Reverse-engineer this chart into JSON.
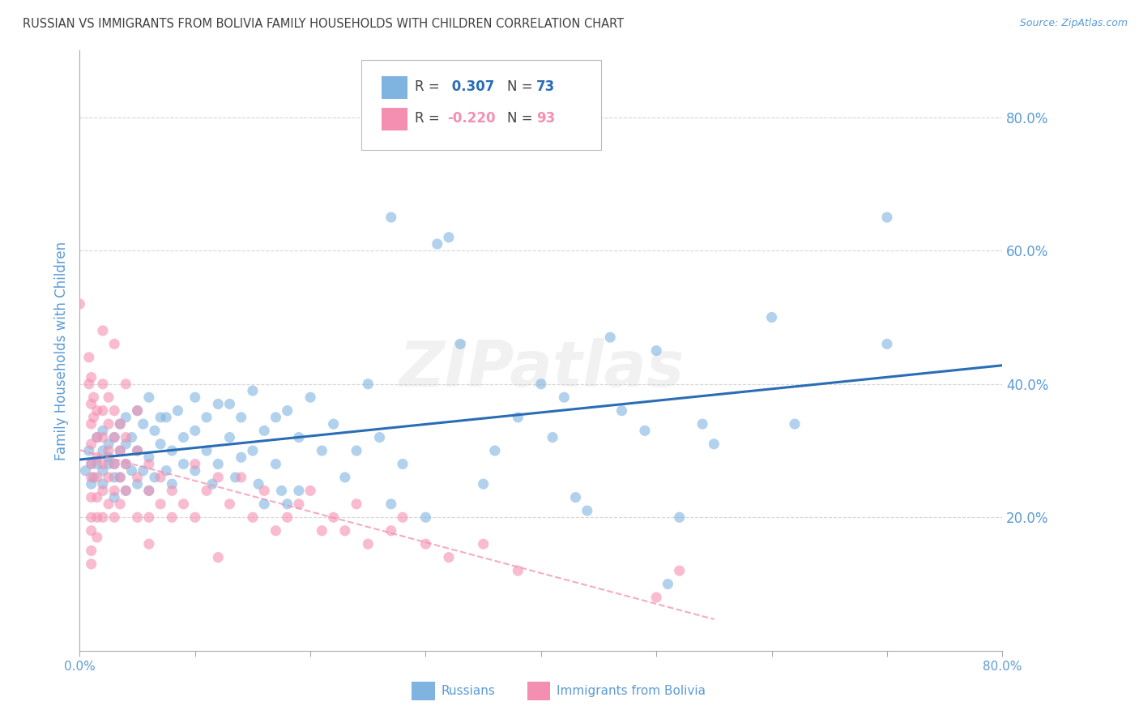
{
  "title": "RUSSIAN VS IMMIGRANTS FROM BOLIVIA FAMILY HOUSEHOLDS WITH CHILDREN CORRELATION CHART",
  "source": "Source: ZipAtlas.com",
  "ylabel": "Family Households with Children",
  "watermark": "ZIPatlas",
  "blue_color": "#7fb3e0",
  "pink_color": "#f48fb1",
  "blue_line_color": "#2a6db5",
  "pink_line_color": "#f48fb1",
  "axis_label_color": "#5b9bd5",
  "title_color": "#404040",
  "grid_color": "#cccccc",
  "background_color": "#ffffff",
  "xlim": [
    0.0,
    0.8
  ],
  "ylim": [
    0.0,
    0.9
  ],
  "yticks": [
    0.2,
    0.4,
    0.6,
    0.8
  ],
  "xticks": [
    0.0,
    0.1,
    0.2,
    0.3,
    0.4,
    0.5,
    0.6,
    0.7,
    0.8
  ],
  "russians": [
    [
      0.005,
      0.27
    ],
    [
      0.008,
      0.3
    ],
    [
      0.01,
      0.28
    ],
    [
      0.01,
      0.25
    ],
    [
      0.012,
      0.26
    ],
    [
      0.015,
      0.28
    ],
    [
      0.015,
      0.32
    ],
    [
      0.02,
      0.27
    ],
    [
      0.02,
      0.3
    ],
    [
      0.02,
      0.25
    ],
    [
      0.02,
      0.33
    ],
    [
      0.025,
      0.29
    ],
    [
      0.025,
      0.28
    ],
    [
      0.025,
      0.31
    ],
    [
      0.03,
      0.32
    ],
    [
      0.03,
      0.26
    ],
    [
      0.03,
      0.23
    ],
    [
      0.03,
      0.28
    ],
    [
      0.035,
      0.3
    ],
    [
      0.035,
      0.26
    ],
    [
      0.035,
      0.34
    ],
    [
      0.04,
      0.35
    ],
    [
      0.04,
      0.28
    ],
    [
      0.04,
      0.24
    ],
    [
      0.04,
      0.31
    ],
    [
      0.045,
      0.32
    ],
    [
      0.045,
      0.27
    ],
    [
      0.05,
      0.36
    ],
    [
      0.05,
      0.3
    ],
    [
      0.05,
      0.25
    ],
    [
      0.055,
      0.34
    ],
    [
      0.055,
      0.27
    ],
    [
      0.06,
      0.38
    ],
    [
      0.06,
      0.29
    ],
    [
      0.06,
      0.24
    ],
    [
      0.065,
      0.33
    ],
    [
      0.065,
      0.26
    ],
    [
      0.07,
      0.35
    ],
    [
      0.07,
      0.31
    ],
    [
      0.075,
      0.35
    ],
    [
      0.075,
      0.27
    ],
    [
      0.08,
      0.3
    ],
    [
      0.08,
      0.25
    ],
    [
      0.085,
      0.36
    ],
    [
      0.09,
      0.32
    ],
    [
      0.09,
      0.28
    ],
    [
      0.1,
      0.38
    ],
    [
      0.1,
      0.33
    ],
    [
      0.1,
      0.27
    ],
    [
      0.11,
      0.35
    ],
    [
      0.11,
      0.3
    ],
    [
      0.115,
      0.25
    ],
    [
      0.12,
      0.37
    ],
    [
      0.12,
      0.28
    ],
    [
      0.13,
      0.37
    ],
    [
      0.13,
      0.32
    ],
    [
      0.135,
      0.26
    ],
    [
      0.14,
      0.35
    ],
    [
      0.14,
      0.29
    ],
    [
      0.15,
      0.39
    ],
    [
      0.15,
      0.3
    ],
    [
      0.155,
      0.25
    ],
    [
      0.16,
      0.33
    ],
    [
      0.16,
      0.22
    ],
    [
      0.17,
      0.35
    ],
    [
      0.17,
      0.28
    ],
    [
      0.175,
      0.24
    ],
    [
      0.18,
      0.36
    ],
    [
      0.18,
      0.22
    ],
    [
      0.19,
      0.32
    ],
    [
      0.19,
      0.24
    ],
    [
      0.2,
      0.38
    ],
    [
      0.21,
      0.3
    ],
    [
      0.22,
      0.34
    ],
    [
      0.23,
      0.26
    ],
    [
      0.24,
      0.3
    ],
    [
      0.25,
      0.4
    ],
    [
      0.26,
      0.32
    ],
    [
      0.27,
      0.22
    ],
    [
      0.28,
      0.28
    ],
    [
      0.3,
      0.2
    ],
    [
      0.31,
      0.61
    ],
    [
      0.32,
      0.62
    ],
    [
      0.33,
      0.46
    ],
    [
      0.27,
      0.65
    ],
    [
      0.35,
      0.25
    ],
    [
      0.36,
      0.3
    ],
    [
      0.38,
      0.35
    ],
    [
      0.4,
      0.4
    ],
    [
      0.41,
      0.32
    ],
    [
      0.42,
      0.38
    ],
    [
      0.43,
      0.23
    ],
    [
      0.44,
      0.21
    ],
    [
      0.46,
      0.47
    ],
    [
      0.47,
      0.36
    ],
    [
      0.49,
      0.33
    ],
    [
      0.5,
      0.45
    ],
    [
      0.51,
      0.1
    ],
    [
      0.52,
      0.2
    ],
    [
      0.54,
      0.34
    ],
    [
      0.55,
      0.31
    ],
    [
      0.6,
      0.5
    ],
    [
      0.62,
      0.34
    ],
    [
      0.7,
      0.65
    ],
    [
      0.7,
      0.46
    ]
  ],
  "bolivians": [
    [
      0.0,
      0.52
    ],
    [
      0.008,
      0.44
    ],
    [
      0.008,
      0.4
    ],
    [
      0.01,
      0.41
    ],
    [
      0.01,
      0.37
    ],
    [
      0.01,
      0.34
    ],
    [
      0.01,
      0.31
    ],
    [
      0.01,
      0.28
    ],
    [
      0.01,
      0.26
    ],
    [
      0.01,
      0.23
    ],
    [
      0.01,
      0.2
    ],
    [
      0.01,
      0.18
    ],
    [
      0.01,
      0.15
    ],
    [
      0.01,
      0.13
    ],
    [
      0.012,
      0.38
    ],
    [
      0.012,
      0.35
    ],
    [
      0.015,
      0.36
    ],
    [
      0.015,
      0.32
    ],
    [
      0.015,
      0.29
    ],
    [
      0.015,
      0.26
    ],
    [
      0.015,
      0.23
    ],
    [
      0.015,
      0.2
    ],
    [
      0.015,
      0.17
    ],
    [
      0.02,
      0.48
    ],
    [
      0.02,
      0.4
    ],
    [
      0.02,
      0.36
    ],
    [
      0.02,
      0.32
    ],
    [
      0.02,
      0.28
    ],
    [
      0.02,
      0.24
    ],
    [
      0.02,
      0.2
    ],
    [
      0.025,
      0.38
    ],
    [
      0.025,
      0.34
    ],
    [
      0.025,
      0.3
    ],
    [
      0.025,
      0.26
    ],
    [
      0.025,
      0.22
    ],
    [
      0.03,
      0.46
    ],
    [
      0.03,
      0.36
    ],
    [
      0.03,
      0.32
    ],
    [
      0.03,
      0.28
    ],
    [
      0.03,
      0.24
    ],
    [
      0.03,
      0.2
    ],
    [
      0.035,
      0.34
    ],
    [
      0.035,
      0.3
    ],
    [
      0.035,
      0.26
    ],
    [
      0.035,
      0.22
    ],
    [
      0.04,
      0.4
    ],
    [
      0.04,
      0.32
    ],
    [
      0.04,
      0.28
    ],
    [
      0.04,
      0.24
    ],
    [
      0.05,
      0.36
    ],
    [
      0.05,
      0.3
    ],
    [
      0.05,
      0.26
    ],
    [
      0.05,
      0.2
    ],
    [
      0.06,
      0.28
    ],
    [
      0.06,
      0.24
    ],
    [
      0.06,
      0.2
    ],
    [
      0.06,
      0.16
    ],
    [
      0.07,
      0.26
    ],
    [
      0.07,
      0.22
    ],
    [
      0.08,
      0.24
    ],
    [
      0.08,
      0.2
    ],
    [
      0.09,
      0.22
    ],
    [
      0.1,
      0.28
    ],
    [
      0.1,
      0.2
    ],
    [
      0.11,
      0.24
    ],
    [
      0.12,
      0.26
    ],
    [
      0.12,
      0.14
    ],
    [
      0.13,
      0.22
    ],
    [
      0.14,
      0.26
    ],
    [
      0.15,
      0.2
    ],
    [
      0.16,
      0.24
    ],
    [
      0.17,
      0.18
    ],
    [
      0.18,
      0.2
    ],
    [
      0.19,
      0.22
    ],
    [
      0.2,
      0.24
    ],
    [
      0.21,
      0.18
    ],
    [
      0.22,
      0.2
    ],
    [
      0.23,
      0.18
    ],
    [
      0.24,
      0.22
    ],
    [
      0.25,
      0.16
    ],
    [
      0.27,
      0.18
    ],
    [
      0.28,
      0.2
    ],
    [
      0.3,
      0.16
    ],
    [
      0.32,
      0.14
    ],
    [
      0.35,
      0.16
    ],
    [
      0.38,
      0.12
    ],
    [
      0.5,
      0.08
    ],
    [
      0.52,
      0.12
    ]
  ]
}
